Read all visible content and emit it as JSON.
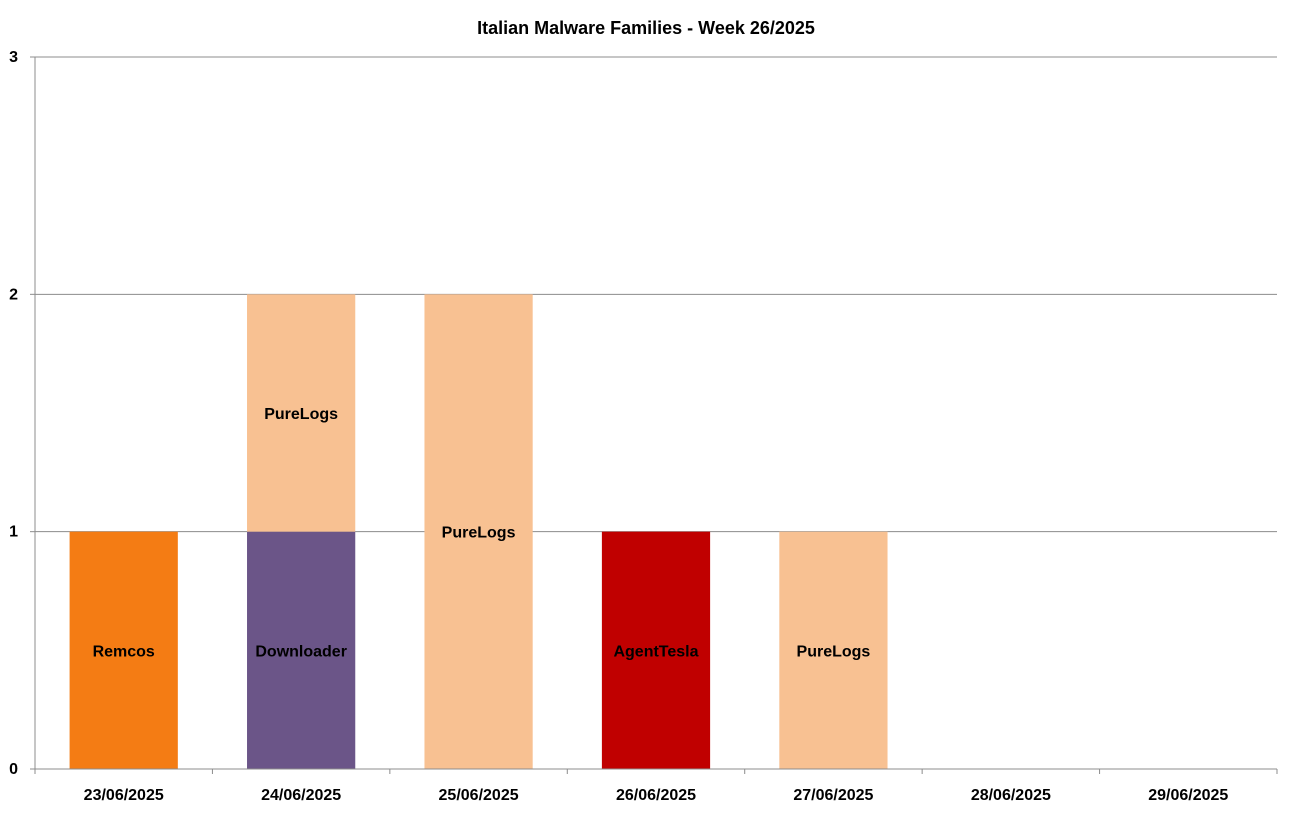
{
  "chart_data": {
    "type": "bar",
    "stacked": true,
    "title": "Italian Malware Families - Week 26/2025",
    "xlabel": "",
    "ylabel": "",
    "ylim": [
      0,
      3
    ],
    "yticks": [
      "0",
      "1",
      "2",
      "3"
    ],
    "grid": true,
    "categories": [
      "23/06/2025",
      "24/06/2025",
      "25/06/2025",
      "26/06/2025",
      "27/06/2025",
      "28/06/2025",
      "29/06/2025"
    ],
    "segments": [
      {
        "category": "23/06/2025",
        "label": "Remcos",
        "value": 1,
        "color": "#f47c14"
      },
      {
        "category": "24/06/2025",
        "label": "Downloader",
        "value": 1,
        "color": "#6b5588"
      },
      {
        "category": "24/06/2025",
        "label": "PureLogs",
        "value": 1,
        "color": "#f8c192"
      },
      {
        "category": "25/06/2025",
        "label": "PureLogs",
        "value": 2,
        "color": "#f8c192"
      },
      {
        "category": "26/06/2025",
        "label": "AgentTesla",
        "value": 1,
        "color": "#c00000"
      },
      {
        "category": "27/06/2025",
        "label": "PureLogs",
        "value": 1,
        "color": "#f8c192"
      }
    ]
  }
}
